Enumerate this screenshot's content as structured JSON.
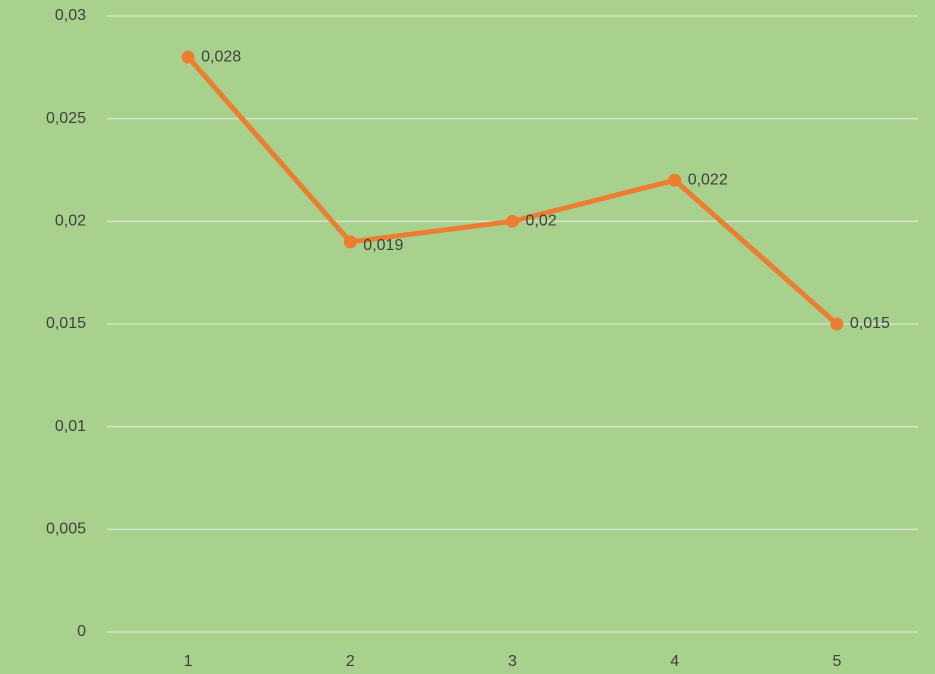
{
  "chart_data": {
    "type": "line",
    "categories": [
      "1",
      "2",
      "3",
      "4",
      "5"
    ],
    "values": [
      0.028,
      0.019,
      0.02,
      0.022,
      0.015
    ],
    "value_labels": [
      "0,028",
      "0,019",
      "0,02",
      "0,022",
      "0,015"
    ],
    "color": "#ed7d31",
    "ylim": [
      0,
      0.03
    ],
    "yticks": [
      0,
      {
        "value": 0.005,
        "label": "0,005"
      },
      {
        "value": 0.01,
        "label": "0,01"
      },
      {
        "value": 0.015,
        "label": "0,015"
      },
      {
        "value": 0.02,
        "label": "0,02"
      },
      {
        "value": 0.025,
        "label": "0,025"
      },
      {
        "value": 0.03,
        "label": "0,03"
      }
    ],
    "grid": true
  }
}
